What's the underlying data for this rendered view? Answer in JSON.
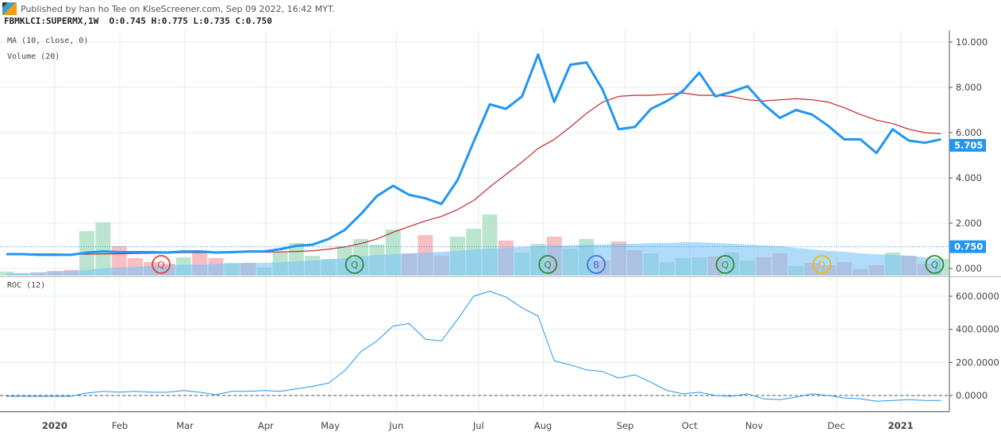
{
  "header": {
    "published": "Published by han ho Tee on KlseScreener.com, Sep 09 2022, 16:42 MYT.",
    "symbol": "FBMKLCI:SUPERMX,1W",
    "ohlc": "O:0.745 H:0.775 L:0.735 C:0.750"
  },
  "legends": {
    "ma": "MA (10, close, 0)",
    "volume": "Volume (20)",
    "roc": "ROC (12)"
  },
  "colors": {
    "price": "#2196f3",
    "ma": "#c62828",
    "vol_up": "#a5dcc0",
    "vol_down": "#f4a9ae",
    "vol_ma": "#7cc4f7",
    "roc": "#2196f3",
    "label_bg": "#2196f3"
  },
  "chart_data": [
    {
      "type": "line",
      "pane": "price",
      "ylim": [
        0,
        10
      ],
      "yticks": [
        "0.000",
        "2.000",
        "4.000",
        "6.000",
        "8.000",
        "10.000"
      ],
      "time_labels": [
        "2020",
        "Feb",
        "Mar",
        "Apr",
        "May",
        "Jun",
        "Jul",
        "Aug",
        "Sep",
        "Oct",
        "Nov",
        "Dec",
        "2021"
      ],
      "last_price_label": "5.705",
      "last_close_label": "0.750",
      "last_price": 5.705,
      "last_close": 0.75,
      "series": [
        {
          "name": "price",
          "values": [
            0.63,
            0.63,
            0.6,
            0.6,
            0.6,
            0.7,
            0.75,
            0.72,
            0.72,
            0.72,
            0.7,
            0.75,
            0.75,
            0.7,
            0.72,
            0.75,
            0.75,
            0.85,
            1.0,
            1.05,
            1.3,
            1.7,
            2.4,
            3.2,
            3.65,
            3.25,
            3.1,
            2.85,
            3.9,
            5.6,
            7.25,
            7.05,
            7.6,
            9.45,
            7.35,
            9.0,
            9.1,
            7.9,
            6.15,
            6.25,
            7.05,
            7.4,
            7.85,
            8.65,
            7.6,
            7.8,
            8.05,
            7.25,
            6.65,
            7.0,
            6.8,
            6.3,
            5.7,
            5.7,
            5.1,
            6.15,
            5.65,
            5.55,
            5.705
          ]
        },
        {
          "name": "MA (10, close, 0)",
          "values": [
            0.65,
            0.65,
            0.64,
            0.64,
            0.63,
            0.63,
            0.64,
            0.65,
            0.66,
            0.67,
            0.68,
            0.7,
            0.7,
            0.7,
            0.71,
            0.72,
            0.72,
            0.73,
            0.75,
            0.78,
            0.85,
            0.95,
            1.1,
            1.3,
            1.6,
            1.85,
            2.1,
            2.3,
            2.6,
            3.0,
            3.6,
            4.15,
            4.7,
            5.3,
            5.7,
            6.25,
            6.85,
            7.35,
            7.6,
            7.65,
            7.65,
            7.7,
            7.75,
            7.65,
            7.65,
            7.6,
            7.45,
            7.4,
            7.45,
            7.5,
            7.45,
            7.35,
            7.1,
            6.8,
            6.55,
            6.4,
            6.15,
            6.0,
            5.95
          ]
        }
      ]
    },
    {
      "type": "bar",
      "pane": "volume",
      "name": "Volume (20)",
      "values": [
        5,
        3,
        4,
        6,
        7,
        56,
        67,
        37,
        22,
        17,
        15,
        23,
        29,
        22,
        16,
        16,
        10,
        30,
        41,
        25,
        21,
        37,
        46,
        39,
        58,
        28,
        51,
        25,
        49,
        59,
        77,
        44,
        29,
        40,
        49,
        34,
        46,
        19,
        43,
        32,
        28,
        17,
        22,
        23,
        24,
        29,
        19,
        23,
        28,
        12,
        16,
        13,
        17,
        8,
        13,
        29,
        25,
        15,
        21
      ],
      "direction": [
        "up",
        "up",
        "down",
        "down",
        "down",
        "up",
        "up",
        "down",
        "down",
        "down",
        "down",
        "up",
        "down",
        "down",
        "up",
        "down",
        "up",
        "up",
        "up",
        "up",
        "up",
        "up",
        "up",
        "up",
        "up",
        "down",
        "down",
        "down",
        "up",
        "up",
        "up",
        "down",
        "up",
        "up",
        "down",
        "up",
        "up",
        "down",
        "down",
        "down",
        "up",
        "up",
        "up",
        "up",
        "down",
        "up",
        "up",
        "down",
        "down",
        "up",
        "down",
        "down",
        "down",
        "down",
        "down",
        "up",
        "down",
        "down",
        "up"
      ],
      "ma_values": [
        3,
        3,
        4,
        5,
        6,
        7,
        9,
        10,
        11,
        12,
        13,
        14,
        14,
        15,
        15,
        16,
        16,
        17,
        18,
        19,
        20,
        22,
        24,
        26,
        27,
        28,
        29,
        30,
        31,
        33,
        34,
        35,
        36,
        37,
        38,
        38,
        39,
        39,
        40,
        40,
        41,
        41,
        42,
        42,
        41,
        40,
        39,
        38,
        37,
        35,
        33,
        31,
        30,
        28,
        27,
        26,
        25,
        23,
        22
      ]
    },
    {
      "type": "line",
      "pane": "roc",
      "name": "ROC (12)",
      "ylim": [
        -60,
        650
      ],
      "yticks": [
        "0.0000",
        "200.0000",
        "400.0000",
        "600.0000"
      ],
      "values": [
        -5,
        -5,
        -5,
        -5,
        -5,
        15,
        25,
        20,
        25,
        20,
        20,
        30,
        20,
        5,
        25,
        25,
        30,
        25,
        40,
        55,
        75,
        150,
        265,
        330,
        420,
        435,
        340,
        330,
        460,
        600,
        630,
        595,
        530,
        480,
        210,
        185,
        155,
        145,
        105,
        125,
        80,
        30,
        10,
        20,
        0,
        -5,
        10,
        -20,
        -25,
        -10,
        10,
        0,
        -15,
        -20,
        -35,
        -30,
        -25,
        -30,
        -30
      ]
    }
  ],
  "events": [
    {
      "letter": "Q",
      "color": "#e53935",
      "week": 10
    },
    {
      "letter": "Q",
      "color": "#2e8b2e",
      "week": 22
    },
    {
      "letter": "Q",
      "color": "#2e8b2e",
      "week": 34
    },
    {
      "letter": "B",
      "color": "#3f6fe8",
      "week": 37
    },
    {
      "letter": "Q",
      "color": "#2e8b2e",
      "week": 45
    },
    {
      "letter": "D",
      "color": "#f2b705",
      "week": 51
    },
    {
      "letter": "Q",
      "color": "#2e8b2e",
      "week": 58
    }
  ]
}
